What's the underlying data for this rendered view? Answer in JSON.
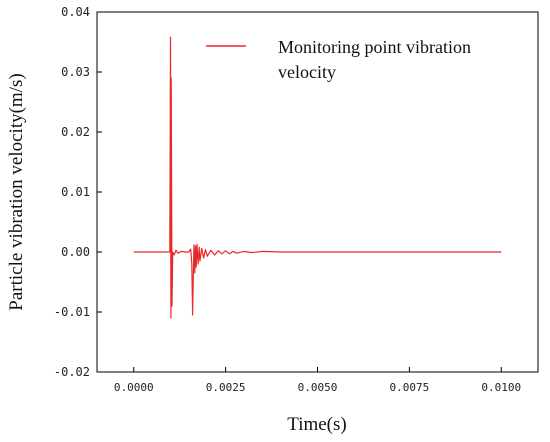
{
  "chart_data": {
    "type": "line",
    "title": "",
    "xlabel": "Time(s)",
    "ylabel": "Particle vibration velocity(m/s)",
    "xlim": [
      -0.001,
      0.011
    ],
    "ylim": [
      -0.02,
      0.04
    ],
    "x_ticks": [
      0.0,
      0.0025,
      0.005,
      0.0075,
      0.01
    ],
    "x_tick_labels": [
      "0.0000",
      "0.0025",
      "0.0050",
      "0.0075",
      "0.0100"
    ],
    "y_ticks": [
      -0.02,
      -0.01,
      0.0,
      0.01,
      0.02,
      0.03,
      0.04
    ],
    "y_tick_labels": [
      "-0.02",
      "-0.01",
      "0.00",
      "0.01",
      "0.02",
      "0.03",
      "0.04"
    ],
    "grid": false,
    "legend_position": "top-right",
    "series": [
      {
        "name": "Monitoring point vibration velocity",
        "color": "#e8282b",
        "x": [
          0.0,
          0.00095,
          0.00098,
          0.001,
          0.00101,
          0.00102,
          0.00104,
          0.00106,
          0.0011,
          0.00115,
          0.0012,
          0.0013,
          0.0014,
          0.0015,
          0.00155,
          0.00158,
          0.0016,
          0.00162,
          0.00164,
          0.00166,
          0.00168,
          0.0017,
          0.00172,
          0.00175,
          0.00178,
          0.0018,
          0.00185,
          0.0019,
          0.00195,
          0.002,
          0.0021,
          0.0022,
          0.0023,
          0.0024,
          0.0025,
          0.0026,
          0.0027,
          0.0028,
          0.003,
          0.0032,
          0.0035,
          0.004,
          0.0045,
          0.005,
          0.006,
          0.007,
          0.008,
          0.009,
          0.01
        ],
        "y": [
          0.0,
          0.0,
          0.0,
          0.0358,
          -0.011,
          0.029,
          -0.009,
          0.0,
          -0.0005,
          0.0003,
          -0.0002,
          0.0001,
          0.0,
          0.0,
          0.0005,
          -0.002,
          -0.0105,
          -0.004,
          0.0012,
          -0.0035,
          0.001,
          -0.0025,
          0.0013,
          -0.002,
          0.0008,
          -0.0015,
          0.0006,
          -0.001,
          0.0004,
          -0.0007,
          0.0003,
          -0.0005,
          0.0002,
          -0.0003,
          0.0002,
          -0.0003,
          0.0001,
          -0.0002,
          0.0001,
          -0.0001,
          0.0001,
          0.0,
          0.0,
          0.0,
          0.0,
          0.0,
          0.0,
          0.0,
          0.0
        ]
      }
    ]
  }
}
